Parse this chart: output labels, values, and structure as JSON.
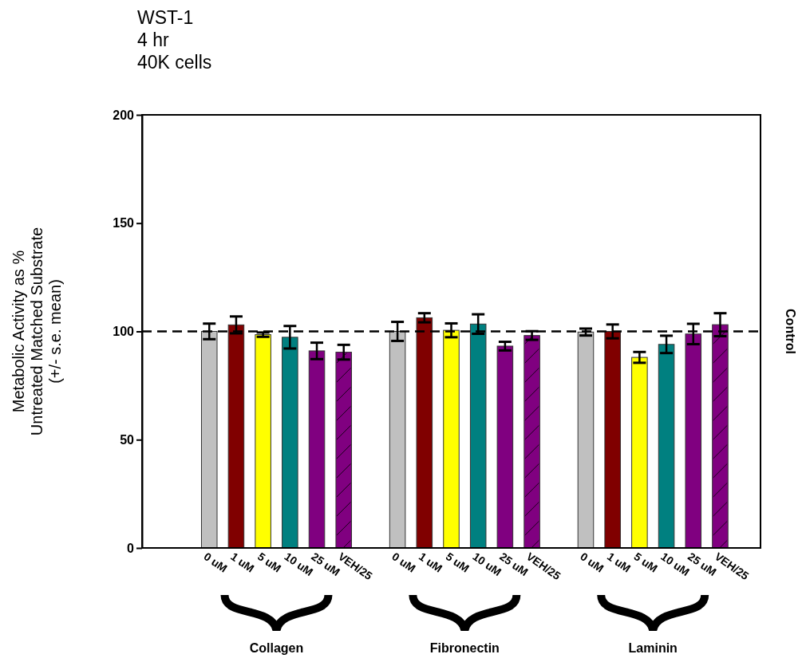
{
  "chart_data": {
    "type": "bar",
    "title": "WST-1\n4 hr\n40K cells",
    "ylabel": "Metabolic Activity as %\nUntreated Matched Substrate\n(+/- s.e. mean)",
    "categories": [
      null,
      null,
      "0 uM",
      "1 uM",
      "5 uM",
      "10 uM",
      "25 uM",
      "VEH/25",
      null,
      "0 uM",
      "1 uM",
      "5 uM",
      "10 uM",
      "25 uM",
      "VEH/25",
      null,
      "0 uM",
      "1 uM",
      "5 uM",
      "10 uM",
      "25 uM",
      "VEH/25",
      null
    ],
    "values": [
      null,
      null,
      100,
      103,
      98.5,
      97.3,
      91,
      90.4,
      null,
      100,
      106.3,
      100.5,
      103.4,
      93.2,
      98.1,
      null,
      99.7,
      100,
      88,
      94,
      98.8,
      103.1,
      null
    ],
    "errors": [
      null,
      null,
      3.6,
      3.9,
      1,
      5.2,
      3.8,
      3.4,
      null,
      4.4,
      2.1,
      3.2,
      4.5,
      2,
      2,
      null,
      1.6,
      3.2,
      2.5,
      4,
      4.7,
      5.3,
      null
    ],
    "colors": [
      null,
      null,
      "#c0c0c0",
      "#800000",
      "#ffff00",
      "#008080",
      "#800080",
      "#800080",
      null,
      "#c0c0c0",
      "#800000",
      "#ffff00",
      "#008080",
      "#800080",
      "#800080",
      null,
      "#c0c0c0",
      "#800000",
      "#ffff00",
      "#008080",
      "#800080",
      "#800080",
      null
    ],
    "ylim": [
      0,
      200
    ],
    "yticks": [
      0,
      50,
      100,
      150,
      200
    ],
    "grid": false,
    "ref_lines": [
      {
        "axis": "y",
        "value": 100,
        "label": "Control",
        "line_style": "dashed"
      }
    ],
    "annotations": [
      "Collagen",
      "Fibronectin",
      "Laminin"
    ]
  }
}
